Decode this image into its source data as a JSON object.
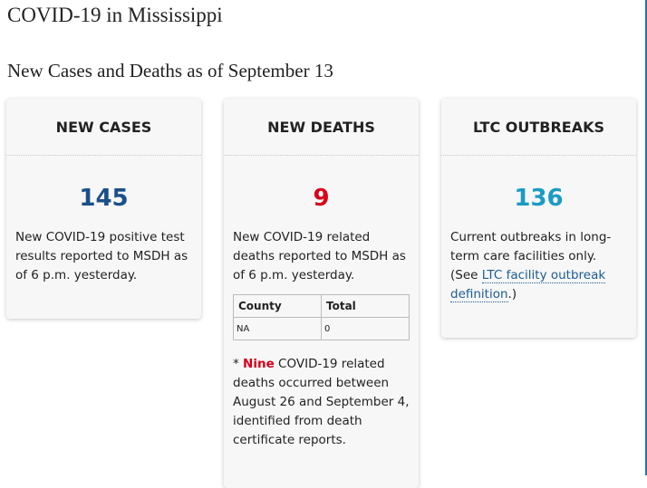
{
  "page": {
    "title": "COVID-19 in Mississippi",
    "subtitle": "New Cases and Deaths as of September 13"
  },
  "cards": {
    "new_cases": {
      "heading": "NEW CASES",
      "value": "145",
      "value_color": "#1a4f8a",
      "description": "New COVID-19 positive test results reported to MSDH as of 6 p.m. yesterday."
    },
    "new_deaths": {
      "heading": "NEW DEATHS",
      "value": "9",
      "value_color": "#d9001b",
      "description": "New COVID-19 related deaths reported to MSDH as of 6 p.m. yesterday.",
      "table": {
        "columns": [
          "County",
          "Total"
        ],
        "rows": [
          [
            "NA",
            "0"
          ]
        ]
      },
      "footnote": {
        "marker": "* ",
        "highlight": "Nine",
        "rest": " COVID-19 related deaths occurred between August 26 and September 4, identified from death certificate reports."
      }
    },
    "ltc_outbreaks": {
      "heading": "LTC OUTBREAKS",
      "value": "136",
      "value_color": "#1a9bc4",
      "description_before": "Current outbreaks in long-term care facilities only. (See ",
      "link_text": "LTC facility outbreak definition",
      "description_after": ".)"
    }
  },
  "colors": {
    "link": "#1a5c96",
    "accent_rule": "#2f6fa8"
  }
}
